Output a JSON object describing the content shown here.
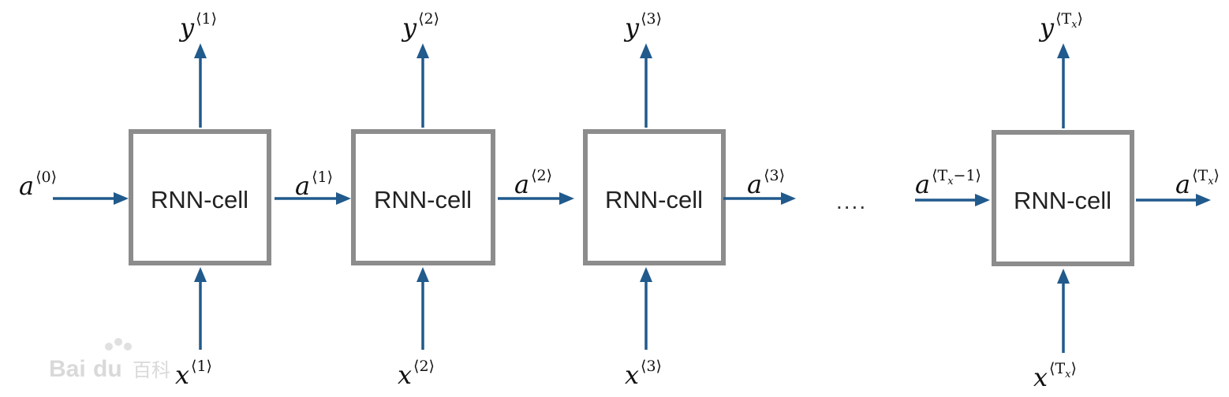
{
  "cells": [
    {
      "label": "RNN-cell",
      "y_label": {
        "base": "y",
        "sup": "⟨1⟩"
      },
      "x_label": {
        "base": "x",
        "sup": "⟨1⟩"
      }
    },
    {
      "label": "RNN-cell",
      "y_label": {
        "base": "y",
        "sup": "⟨2⟩"
      },
      "x_label": {
        "base": "x",
        "sup": "⟨2⟩"
      }
    },
    {
      "label": "RNN-cell",
      "y_label": {
        "base": "y",
        "sup": "⟨3⟩"
      },
      "x_label": {
        "base": "x",
        "sup": "⟨3⟩"
      }
    },
    {
      "label": "RNN-cell",
      "y_label": {
        "base": "y",
        "sup_open": "⟨",
        "sup_var": "T",
        "sup_sub": "x",
        "sup_close": "⟩"
      },
      "x_label": {
        "base": "x",
        "sup_open": "⟨",
        "sup_var": "T",
        "sup_sub": "x",
        "sup_close": "⟩"
      }
    }
  ],
  "hidden_states": [
    {
      "base": "a",
      "sup": "⟨0⟩"
    },
    {
      "base": "a",
      "sup": "⟨1⟩"
    },
    {
      "base": "a",
      "sup": "⟨2⟩"
    },
    {
      "base": "a",
      "sup": "⟨3⟩"
    },
    {
      "base": "a",
      "sup_open": "⟨",
      "sup_var": "T",
      "sup_sub": "x",
      "sup_tail": "−1⟩"
    },
    {
      "base": "a",
      "sup_open": "⟨",
      "sup_var": "T",
      "sup_sub": "x",
      "sup_close": "⟩"
    }
  ],
  "ellipsis": "....",
  "watermark": {
    "text": "Bai",
    "paw": "du",
    "cn": "百科"
  },
  "colors": {
    "arrow": "#215a8c",
    "box_border": "#8c8c8c"
  }
}
